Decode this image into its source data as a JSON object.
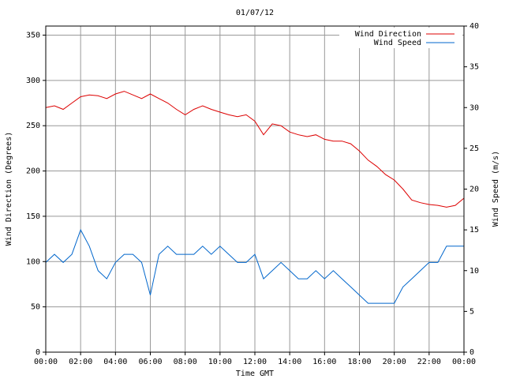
{
  "chart_data": {
    "type": "line",
    "title": "01/07/12",
    "xlabel": "Time GMT",
    "ylabel_left": "Wind Direction (Degrees)",
    "ylabel_right": "Wind Speed (m/s)",
    "x_ticks": [
      "00:00",
      "02:00",
      "04:00",
      "06:00",
      "08:00",
      "10:00",
      "12:00",
      "14:00",
      "16:00",
      "18:00",
      "20:00",
      "22:00",
      "00:00"
    ],
    "x_range_hours": [
      0,
      24
    ],
    "y_left": {
      "range": [
        0,
        360
      ],
      "ticks": [
        0,
        50,
        100,
        150,
        200,
        250,
        300,
        350
      ]
    },
    "y_right": {
      "range": [
        0,
        40
      ],
      "ticks": [
        0,
        5,
        10,
        15,
        20,
        25,
        30,
        35,
        40
      ]
    },
    "grid": true,
    "legend_position": "top-right",
    "series": [
      {
        "name": "Wind Direction",
        "axis": "left",
        "color": "#dd0000",
        "x": [
          0,
          0.5,
          1,
          1.5,
          2,
          2.5,
          3,
          3.5,
          4,
          4.5,
          5,
          5.5,
          6,
          6.5,
          7,
          7.5,
          8,
          8.5,
          9,
          9.5,
          10,
          10.5,
          11,
          11.5,
          12,
          12.5,
          13,
          13.5,
          14,
          14.5,
          15,
          15.5,
          16,
          16.5,
          17,
          17.5,
          18,
          18.5,
          19,
          19.5,
          20,
          20.5,
          21,
          21.5,
          22,
          22.5,
          23,
          23.5,
          24
        ],
        "values": [
          270,
          272,
          268,
          275,
          282,
          284,
          283,
          280,
          285,
          288,
          284,
          280,
          285,
          280,
          275,
          268,
          262,
          268,
          272,
          268,
          265,
          262,
          260,
          262,
          255,
          240,
          252,
          250,
          243,
          240,
          238,
          240,
          235,
          233,
          233,
          230,
          222,
          212,
          205,
          196,
          190,
          180,
          168,
          165,
          163,
          162,
          160,
          162,
          170
        ]
      },
      {
        "name": "Wind Speed",
        "axis": "right",
        "color": "#0066cc",
        "x": [
          0,
          0.5,
          1,
          1.5,
          2,
          2.5,
          3,
          3.5,
          4,
          4.5,
          5,
          5.5,
          6,
          6.5,
          7,
          7.5,
          8,
          8.5,
          9,
          9.5,
          10,
          10.5,
          11,
          11.5,
          12,
          12.5,
          13,
          13.5,
          14,
          14.5,
          15,
          15.5,
          16,
          16.5,
          17,
          17.5,
          18,
          18.5,
          19,
          19.5,
          20,
          20.5,
          21,
          21.5,
          22,
          22.5,
          23,
          23.5,
          24
        ],
        "values": [
          11,
          12,
          11,
          12,
          15,
          13,
          10,
          9,
          11,
          12,
          12,
          11,
          7,
          12,
          13,
          12,
          12,
          12,
          13,
          12,
          13,
          12,
          11,
          11,
          12,
          9,
          10,
          11,
          10,
          9,
          9,
          10,
          9,
          10,
          9,
          8,
          7,
          6,
          6,
          6,
          6,
          8,
          9,
          10,
          11,
          11,
          13,
          13,
          13
        ]
      }
    ]
  }
}
